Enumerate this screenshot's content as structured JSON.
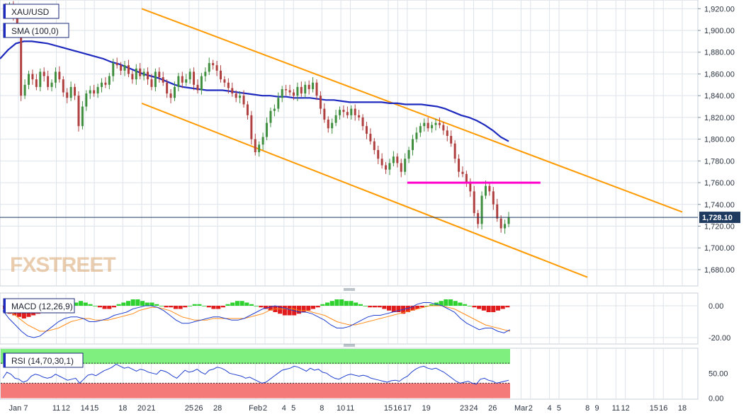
{
  "chart_data": {
    "type": "candlestick",
    "symbol": "XAU/USD",
    "watermark": "FXSTREET",
    "main": {
      "indicator_label": "SMA (100,0)",
      "y_ticks": [
        "1,920.00",
        "1,900.00",
        "1,880.00",
        "1,860.00",
        "1,840.00",
        "1,820.00",
        "1,800.00",
        "1,780.00",
        "1,760.00",
        "1,740.00",
        "1,720.00",
        "1,700.00",
        "1,680.00"
      ],
      "y_tick_values": [
        1920,
        1900,
        1880,
        1860,
        1840,
        1820,
        1800,
        1780,
        1760,
        1740,
        1720,
        1700,
        1680
      ],
      "ylim": [
        1665,
        1928
      ],
      "last_price": "1,728.10",
      "last_value": 1728.1,
      "colors": {
        "up": "#3f8f3f",
        "down": "#b04040",
        "sma": "#1f2bbf",
        "channel": "#ff9a00",
        "support": "#ff00cc",
        "last_line": "#1e3a5f",
        "grid": "#dde3ea"
      },
      "series": {
        "close": [
          1918,
          1922,
          1912,
          1898,
          1840,
          1850,
          1860,
          1855,
          1848,
          1862,
          1858,
          1848,
          1852,
          1862,
          1855,
          1843,
          1838,
          1848,
          1840,
          1812,
          1830,
          1842,
          1845,
          1842,
          1848,
          1852,
          1850,
          1858,
          1870,
          1868,
          1863,
          1868,
          1860,
          1855,
          1865,
          1858,
          1862,
          1855,
          1848,
          1862,
          1857,
          1852,
          1842,
          1838,
          1848,
          1858,
          1852,
          1855,
          1862,
          1850,
          1845,
          1858,
          1862,
          1870,
          1868,
          1863,
          1855,
          1852,
          1847,
          1842,
          1838,
          1840,
          1832,
          1822,
          1800,
          1788,
          1795,
          1802,
          1815,
          1826,
          1828,
          1838,
          1846,
          1845,
          1843,
          1840,
          1848,
          1842,
          1850,
          1846,
          1852,
          1840,
          1828,
          1818,
          1810,
          1815,
          1822,
          1827,
          1825,
          1822,
          1828,
          1822,
          1820,
          1812,
          1805,
          1798,
          1790,
          1782,
          1776,
          1772,
          1778,
          1784,
          1778,
          1770,
          1782,
          1790,
          1800,
          1806,
          1812,
          1815,
          1810,
          1813,
          1815,
          1813,
          1808,
          1803,
          1796,
          1782,
          1770,
          1768,
          1760,
          1752,
          1732,
          1722,
          1748,
          1757,
          1752,
          1740,
          1727,
          1718,
          1722,
          1728.1
        ],
        "sma": [
          1874,
          1882,
          1888,
          1890,
          1890,
          1889,
          1888,
          1886,
          1884,
          1882,
          1880,
          1878,
          1876,
          1874,
          1871,
          1869,
          1866,
          1863,
          1860,
          1858,
          1856,
          1853,
          1850,
          1848,
          1847,
          1846,
          1845,
          1845,
          1845,
          1844,
          1843,
          1842,
          1841,
          1840,
          1840,
          1839,
          1839,
          1838,
          1838,
          1838,
          1837,
          1836,
          1836,
          1835,
          1834,
          1834,
          1834,
          1834,
          1834,
          1833,
          1833,
          1832,
          1832,
          1832,
          1831,
          1830,
          1828,
          1825,
          1822,
          1820,
          1817,
          1813,
          1808,
          1802,
          1798
        ]
      },
      "channel": {
        "upper": [
          {
            "x": "Jan 20",
            "y": 1920
          },
          {
            "x": "Mar 18",
            "y": 1733
          }
        ],
        "lower": [
          {
            "x": "Jan 20",
            "y": 1833
          },
          {
            "x": "Mar 8",
            "y": 1673
          }
        ]
      },
      "support": {
        "x_start": "Feb 17",
        "x_end": "Mar 2",
        "y": 1760
      }
    },
    "macd": {
      "label": "MACD (12,26,9)",
      "y_ticks": [
        "0.00",
        "-20.00"
      ],
      "y_tick_values": [
        0,
        -20
      ],
      "ylim": [
        -24,
        8
      ],
      "hist": [
        -2,
        -5,
        -6,
        -7,
        -8,
        -7,
        -6,
        -5,
        -4,
        -3,
        -2,
        -1,
        0,
        1,
        2,
        2,
        3,
        2,
        1,
        0,
        -1,
        -2,
        -2,
        -1,
        1,
        2,
        3,
        4,
        4,
        3,
        2,
        2,
        1,
        0,
        -1,
        -1,
        -2,
        -2,
        -1,
        0,
        1,
        1,
        0,
        -1,
        -2,
        -2,
        -1,
        1,
        2,
        3,
        3,
        2,
        1,
        0,
        -1,
        -2,
        -3,
        -4,
        -5,
        -6,
        -6,
        -6,
        -5,
        -4,
        -3,
        -2,
        -1,
        1,
        2,
        3,
        4,
        4,
        3,
        3,
        2,
        1,
        0,
        -1,
        -1,
        -1,
        -2,
        -3,
        -4,
        -4,
        -5,
        -4,
        -3,
        -2,
        -1,
        0,
        1,
        2,
        3,
        4,
        4,
        3,
        2,
        1,
        0,
        -1,
        -2,
        -3,
        -4,
        -4,
        -3,
        -2,
        -1
      ],
      "macd_line": [
        -3,
        -8,
        -12,
        -16,
        -19,
        -20,
        -19,
        -16,
        -13,
        -10,
        -8,
        -7,
        -7,
        -8,
        -10,
        -10,
        -9,
        -8,
        -6,
        -5,
        -4,
        -2,
        -1,
        0,
        0,
        -1,
        -3,
        -6,
        -9,
        -11,
        -11,
        -10,
        -9,
        -8,
        -7,
        -7,
        -8,
        -9,
        -9,
        -8,
        -6,
        -4,
        -2,
        -1,
        0,
        -1,
        -2,
        -3,
        -4,
        -4,
        -5,
        -7,
        -9,
        -12,
        -14,
        -14,
        -13,
        -11,
        -9,
        -7,
        -6,
        -6,
        -5,
        -4,
        -3,
        -2,
        -1,
        1,
        2,
        2,
        1,
        0,
        -2,
        -4,
        -8,
        -11,
        -13,
        -15,
        -14,
        -14,
        -16,
        -17,
        -15
      ],
      "signal_line": [
        -1,
        -3,
        -6,
        -9,
        -12,
        -14,
        -16,
        -16,
        -15,
        -14,
        -12,
        -10,
        -9,
        -8,
        -8,
        -9,
        -9,
        -9,
        -8,
        -7,
        -6,
        -5,
        -3,
        -2,
        -1,
        -1,
        -2,
        -3,
        -5,
        -7,
        -8,
        -9,
        -9,
        -9,
        -8,
        -8,
        -8,
        -8,
        -8,
        -8,
        -7,
        -6,
        -5,
        -3,
        -2,
        -2,
        -2,
        -2,
        -3,
        -3,
        -4,
        -5,
        -6,
        -8,
        -10,
        -11,
        -12,
        -12,
        -11,
        -10,
        -9,
        -8,
        -7,
        -6,
        -5,
        -4,
        -3,
        -2,
        -1,
        0,
        0,
        0,
        -1,
        -2,
        -4,
        -6,
        -8,
        -10,
        -12,
        -13,
        -14,
        -15,
        -16
      ]
    },
    "rsi": {
      "label": "RSI (14,70,30,1)",
      "y_ticks": [
        "50.00",
        "0.00"
      ],
      "y_tick_values": [
        50,
        0
      ],
      "ylim": [
        -2,
        100
      ],
      "overbought": 70,
      "oversold": 30,
      "values": [
        40,
        52,
        48,
        40,
        38,
        32,
        35,
        44,
        48,
        46,
        42,
        40,
        42,
        48,
        44,
        40,
        36,
        38,
        40,
        30,
        38,
        46,
        48,
        45,
        50,
        55,
        58,
        62,
        68,
        64,
        60,
        62,
        58,
        54,
        58,
        56,
        52,
        50,
        48,
        56,
        54,
        50,
        44,
        40,
        48,
        56,
        52,
        54,
        58,
        52,
        48,
        56,
        58,
        62,
        60,
        56,
        50,
        48,
        46,
        44,
        40,
        42,
        38,
        34,
        30,
        32,
        38,
        44,
        50,
        56,
        58,
        60,
        64,
        62,
        58,
        54,
        60,
        56,
        58,
        52,
        50,
        44,
        40,
        38,
        42,
        46,
        48,
        46,
        44,
        46,
        44,
        40,
        38,
        36,
        34,
        32,
        35,
        36,
        34,
        40,
        44,
        52,
        58,
        62,
        64,
        60,
        58,
        60,
        56,
        52,
        46,
        40,
        34,
        30,
        32,
        34,
        30,
        28,
        38,
        40,
        36,
        34,
        30,
        32,
        34,
        36
      ]
    },
    "x_ticks": [
      "Jan 7",
      "11",
      "12",
      "14",
      "15",
      "18",
      "20",
      "21",
      "25",
      "26",
      "28",
      "Feb",
      "2",
      "4",
      "5",
      "8",
      "10",
      "11",
      "15",
      "16",
      "17",
      "19",
      "23",
      "24",
      "26",
      "Mar",
      "2",
      "4",
      "5",
      "8",
      "9",
      "11",
      "12",
      "15",
      "16",
      "18"
    ],
    "x_tick_dates": [
      "2021-01-07",
      "2021-01-11",
      "2021-01-12",
      "2021-01-14",
      "2021-01-15",
      "2021-01-18",
      "2021-01-20",
      "2021-01-21",
      "2021-01-25",
      "2021-01-26",
      "2021-01-28",
      "2021-02-01",
      "2021-02-02",
      "2021-02-04",
      "2021-02-05",
      "2021-02-08",
      "2021-02-10",
      "2021-02-11",
      "2021-02-15",
      "2021-02-16",
      "2021-02-17",
      "2021-02-19",
      "2021-02-23",
      "2021-02-24",
      "2021-02-26",
      "2021-03-01",
      "2021-03-02",
      "2021-03-04",
      "2021-03-05",
      "2021-03-08",
      "2021-03-09",
      "2021-03-11",
      "2021-03-12",
      "2021-03-15",
      "2021-03-16",
      "2021-03-18"
    ]
  }
}
